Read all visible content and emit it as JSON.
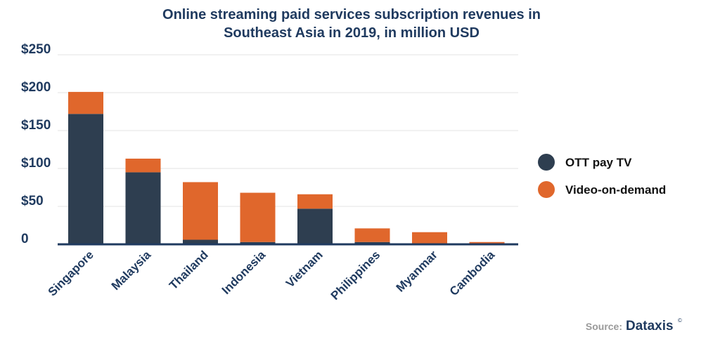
{
  "chart_data": {
    "type": "bar",
    "stacked": true,
    "title_lines": [
      "Online streaming paid services subscription revenues in",
      "Southeast Asia in 2019, in million USD"
    ],
    "categories": [
      "Singapore",
      "Malaysia",
      "Thailand",
      "Indonesia",
      "Vietnam",
      "Philippines",
      "Myanmar",
      "Cambodia"
    ],
    "series": [
      {
        "name": "OTT pay TV",
        "color": "#2e3e50",
        "values": [
          172,
          95,
          6,
          3,
          47,
          3,
          0,
          0
        ]
      },
      {
        "name": "Video-on-demand",
        "color": "#e0672c",
        "values": [
          29,
          18,
          76,
          65,
          19,
          18,
          16,
          3
        ]
      }
    ],
    "ylim": [
      0,
      250
    ],
    "yticks": [
      0,
      50,
      100,
      150,
      200,
      250
    ],
    "ytick_labels": [
      "0",
      "$50",
      "$100",
      "$150",
      "$200",
      "$250"
    ],
    "grid": true,
    "legend_position": "right",
    "xlabel": "",
    "ylabel": ""
  },
  "source": {
    "label": "Source:",
    "brand": "Dataxis",
    "mark": "©"
  }
}
